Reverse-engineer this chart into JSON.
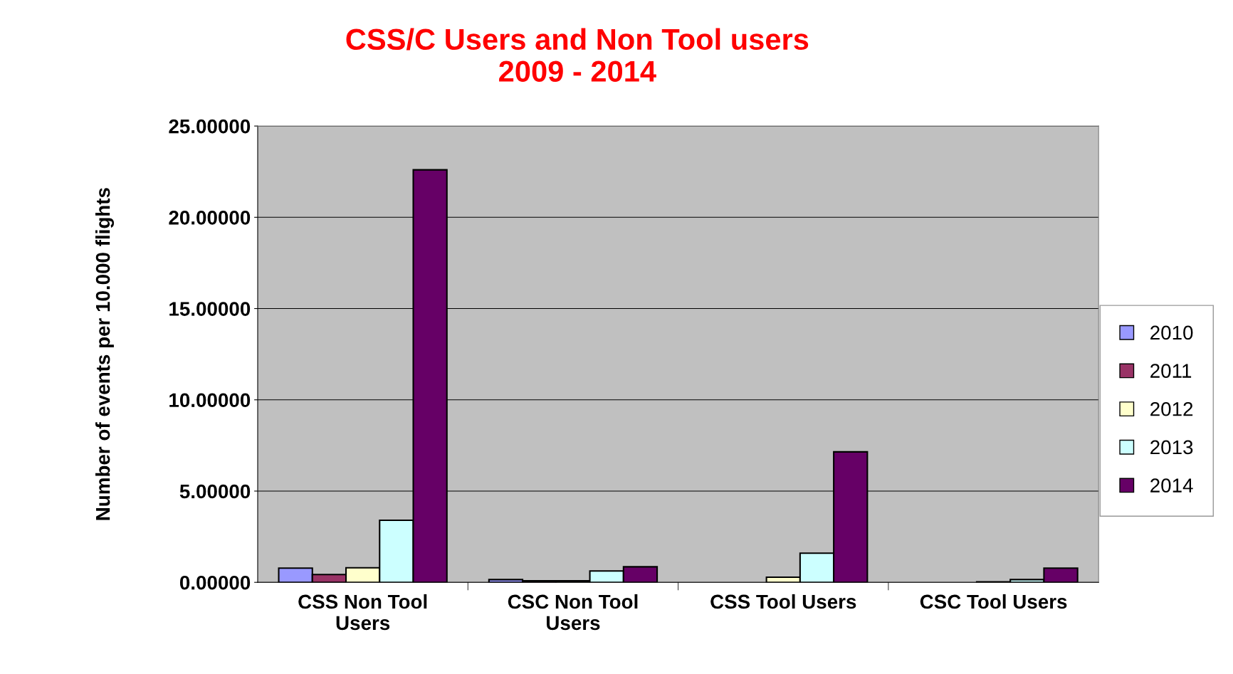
{
  "chart_data": {
    "type": "bar",
    "title": "CSS/C Users and Non Tool users\n2009 - 2014",
    "ylabel": "Number of events per 10.000 flights",
    "categories": [
      "CSS Non Tool\nUsers",
      "CSC Non Tool\nUsers",
      "CSS Tool Users",
      "CSC Tool Users"
    ],
    "series": [
      {
        "name": "2010",
        "color": "#9999ff",
        "values": [
          0.78,
          0.15,
          null,
          null
        ]
      },
      {
        "name": "2011",
        "color": "#993366",
        "values": [
          0.43,
          0.08,
          null,
          null
        ]
      },
      {
        "name": "2012",
        "color": "#ffffcc",
        "values": [
          0.8,
          0.08,
          0.28,
          0.03
        ]
      },
      {
        "name": "2013",
        "color": "#ccffff",
        "values": [
          3.4,
          0.62,
          1.6,
          0.15
        ]
      },
      {
        "name": "2014",
        "color": "#660066",
        "values": [
          22.6,
          0.85,
          7.15,
          0.78
        ]
      }
    ],
    "ylim": [
      0,
      25
    ],
    "yticks": [
      {
        "value": 0,
        "label": "0.00000"
      },
      {
        "value": 5,
        "label": "5.00000"
      },
      {
        "value": 10,
        "label": "10.00000"
      },
      {
        "value": 15,
        "label": "15.00000"
      },
      {
        "value": 20,
        "label": "20.00000"
      },
      {
        "value": 25,
        "label": "25.00000"
      }
    ],
    "grid": "y",
    "legend": "right"
  }
}
